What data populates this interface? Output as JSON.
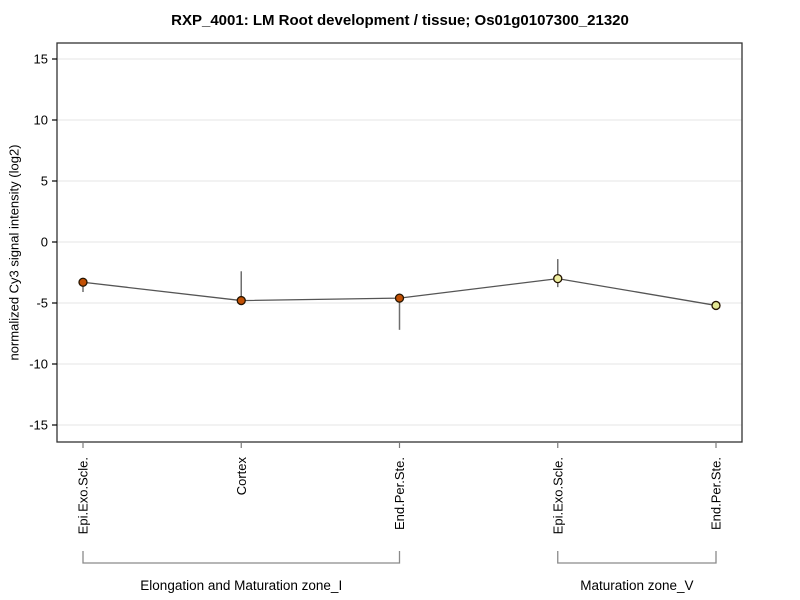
{
  "title": "RXP_4001: LM Root development / tissue; Os01g0107300_21320",
  "chart_data": {
    "type": "line",
    "title": "RXP_4001: LM Root development / tissue; Os01g0107300_21320",
    "xlabel": "",
    "ylabel": "normalized Cy3 signal intensity (log2)",
    "ylim": [
      -16.5,
      16.5
    ],
    "yticks": [
      15,
      10,
      5,
      0,
      -5,
      -10,
      -15
    ],
    "grid": true,
    "legend": "none",
    "categories": [
      "Epi.Exo.Scle.",
      "Cortex",
      "End.Per.Ste.",
      "Epi.Exo.Scle.",
      "End.Per.Ste."
    ],
    "values": [
      -3.3,
      -4.8,
      -4.6,
      -3.0,
      -5.2
    ],
    "error_low": [
      -4.1,
      -5.0,
      -7.2,
      -3.7,
      -5.2
    ],
    "error_high": [
      -3.0,
      -2.4,
      -4.5,
      -1.4,
      -5.2
    ],
    "point_colors": [
      "#c25004",
      "#c25004",
      "#c25004",
      "#ededa0",
      "#e3e794"
    ],
    "point_outline": "#241400",
    "line_color": "#555555",
    "errorbar_color": "#6e6e6e",
    "grid_color": "#e4e4e4",
    "frame_color": "#333333",
    "bracket_color": "#8a8a8a",
    "groups": [
      {
        "label": "Elongation and Maturation zone_I",
        "start": 0,
        "end": 2
      },
      {
        "label": "Maturation zone_V",
        "start": 3,
        "end": 4
      }
    ]
  }
}
